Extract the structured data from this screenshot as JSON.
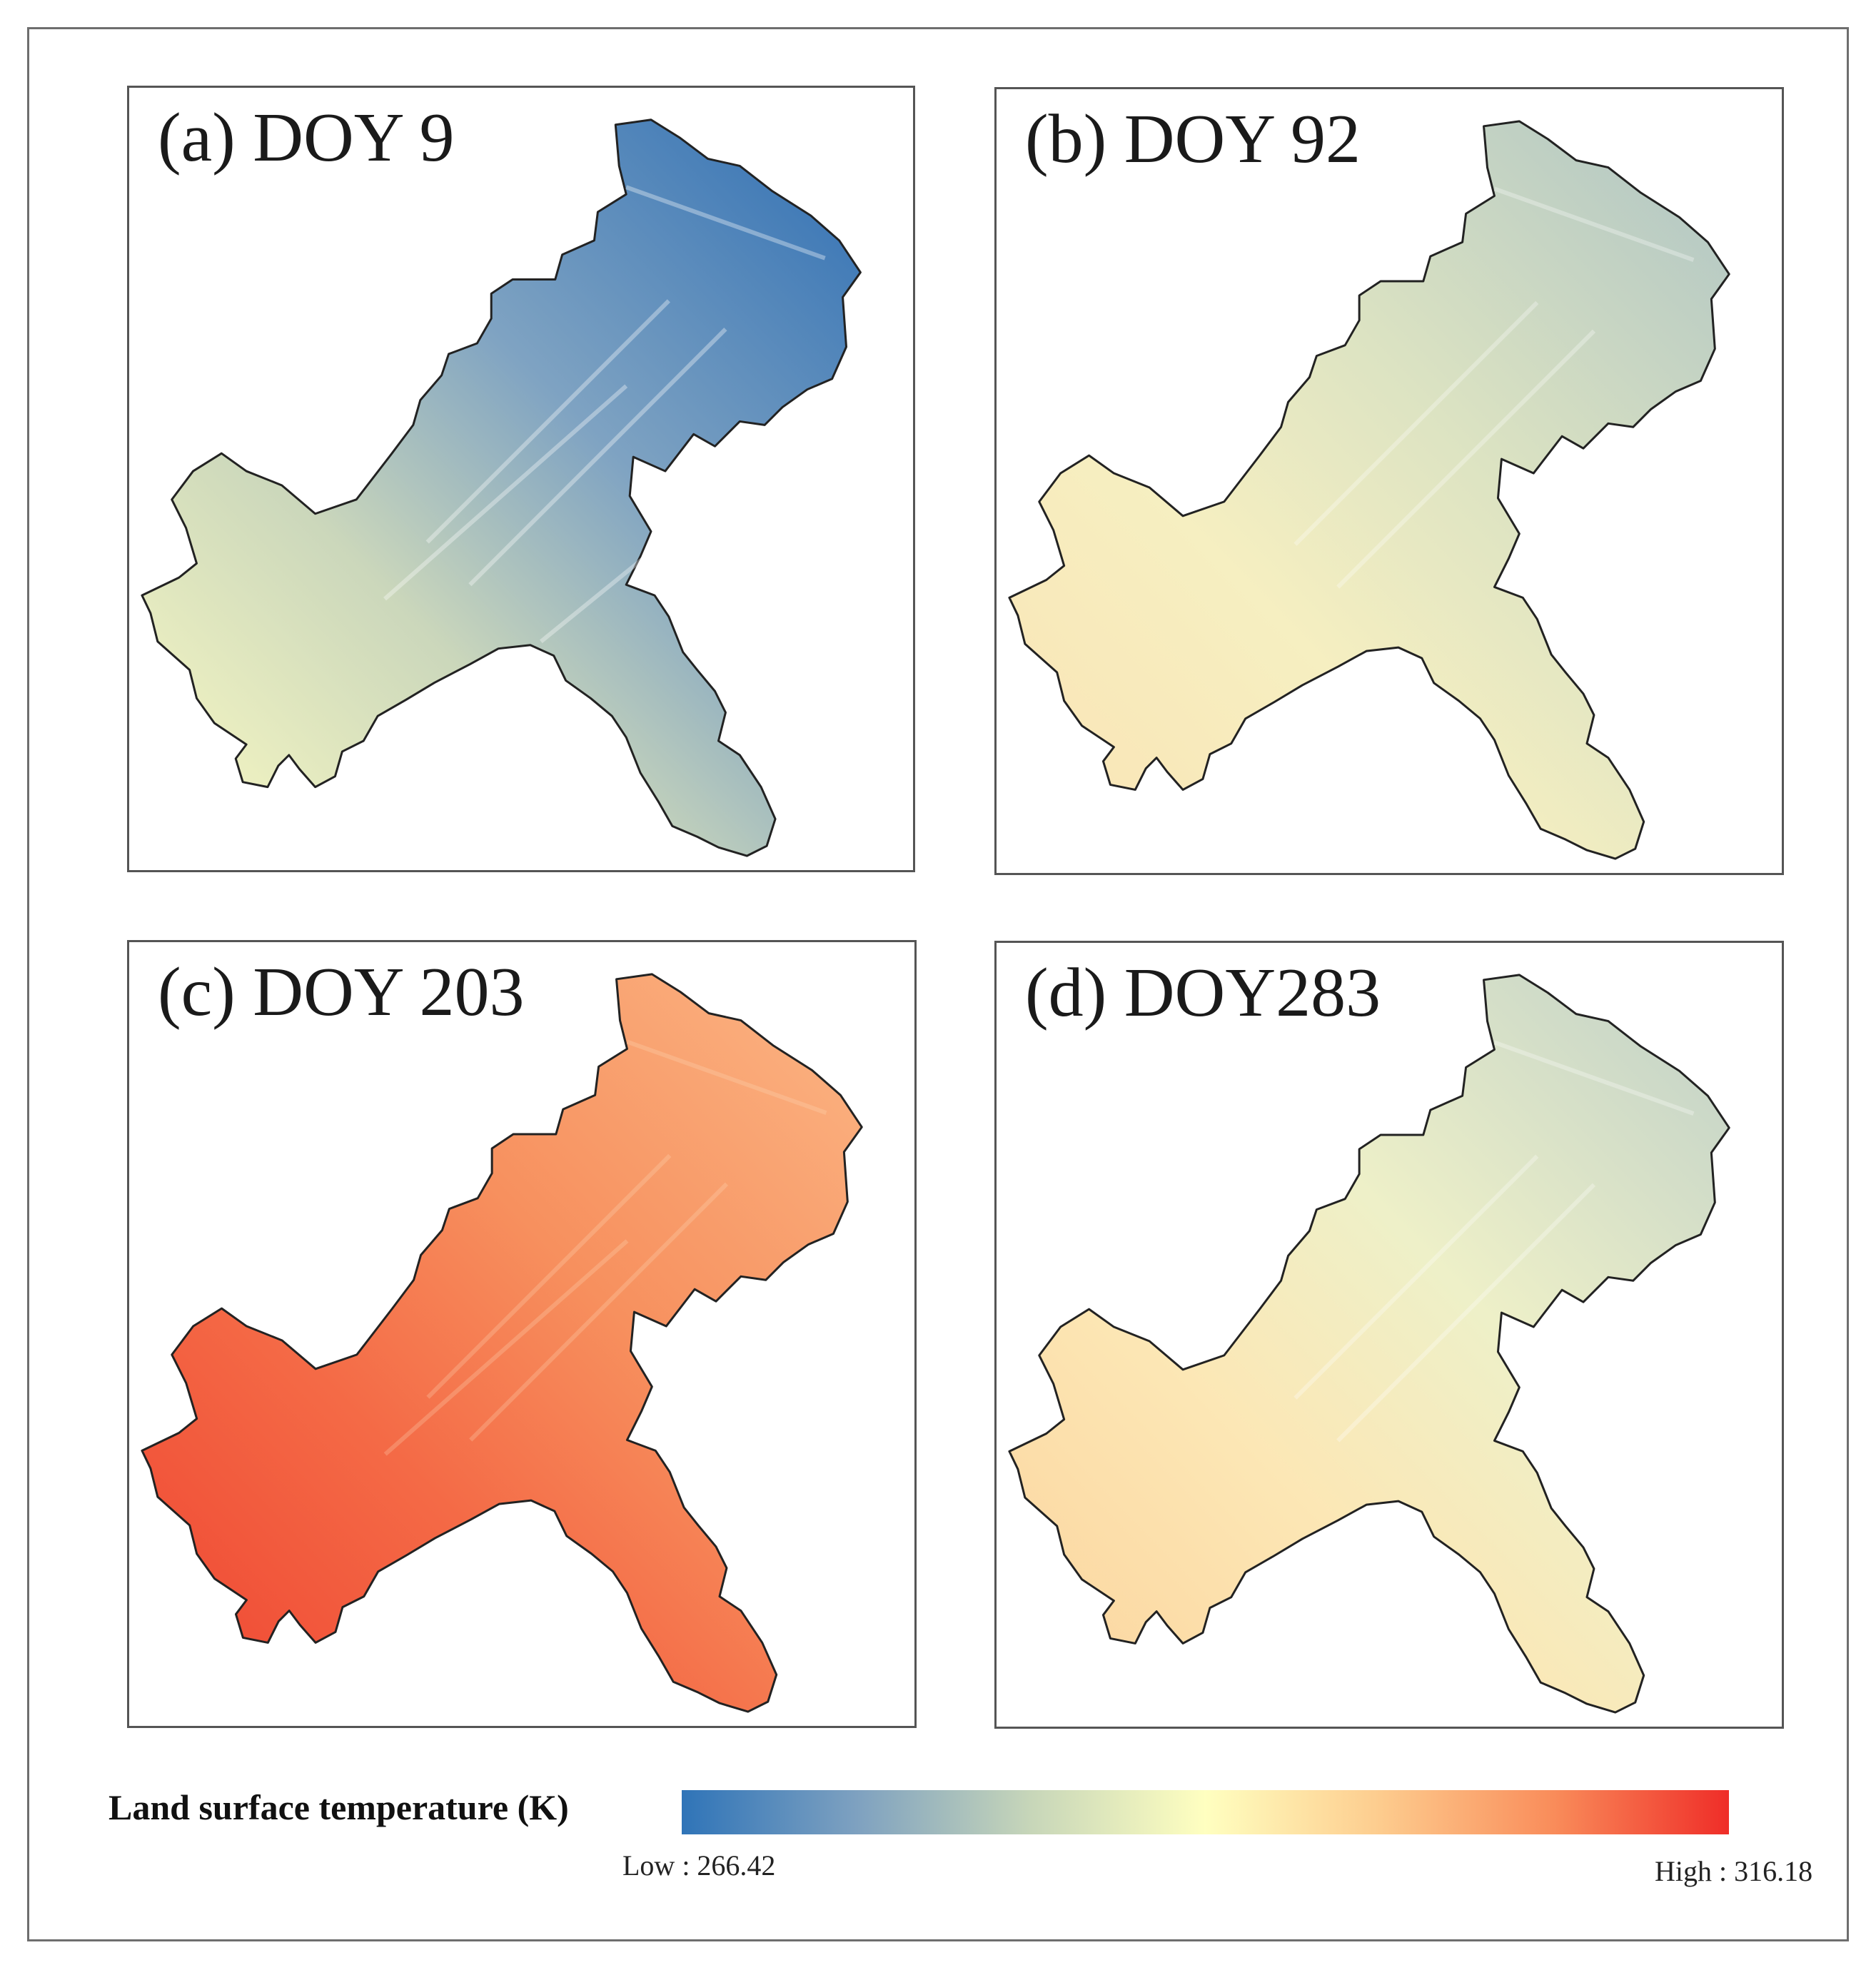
{
  "figure": {
    "panels": [
      {
        "id": "a",
        "title": "(a) DOY 9",
        "day_of_year": 9,
        "fill_colors": [
          "#fdfcc4",
          "#cbd7bb",
          "#7fa3c2",
          "#2f6fb4"
        ]
      },
      {
        "id": "b",
        "title": "(b) DOY 92",
        "day_of_year": 92,
        "fill_colors": [
          "#fbe3b4",
          "#f6efc1",
          "#dce3c2",
          "#aec4c4"
        ]
      },
      {
        "id": "c",
        "title": "(c) DOY 203",
        "day_of_year": 203,
        "fill_colors": [
          "#ef4431",
          "#f46a46",
          "#f7905e",
          "#fbb685"
        ]
      },
      {
        "id": "d",
        "title": "(d) DOY283",
        "day_of_year": 283,
        "fill_colors": [
          "#fbd39c",
          "#fce7b5",
          "#eef0c8",
          "#bfd0c8"
        ]
      }
    ],
    "legend": {
      "title": "Land surface temperature (K)",
      "low_label": "Low : 266.42",
      "high_label": "High : 316.18",
      "low_value": 266.42,
      "high_value": 316.18,
      "ramp_colors": [
        "#2f74b8",
        "#7ea1c0",
        "#c7d6b9",
        "#ffffc0",
        "#fdcc8e",
        "#f98c5a",
        "#ef2d28"
      ]
    }
  }
}
